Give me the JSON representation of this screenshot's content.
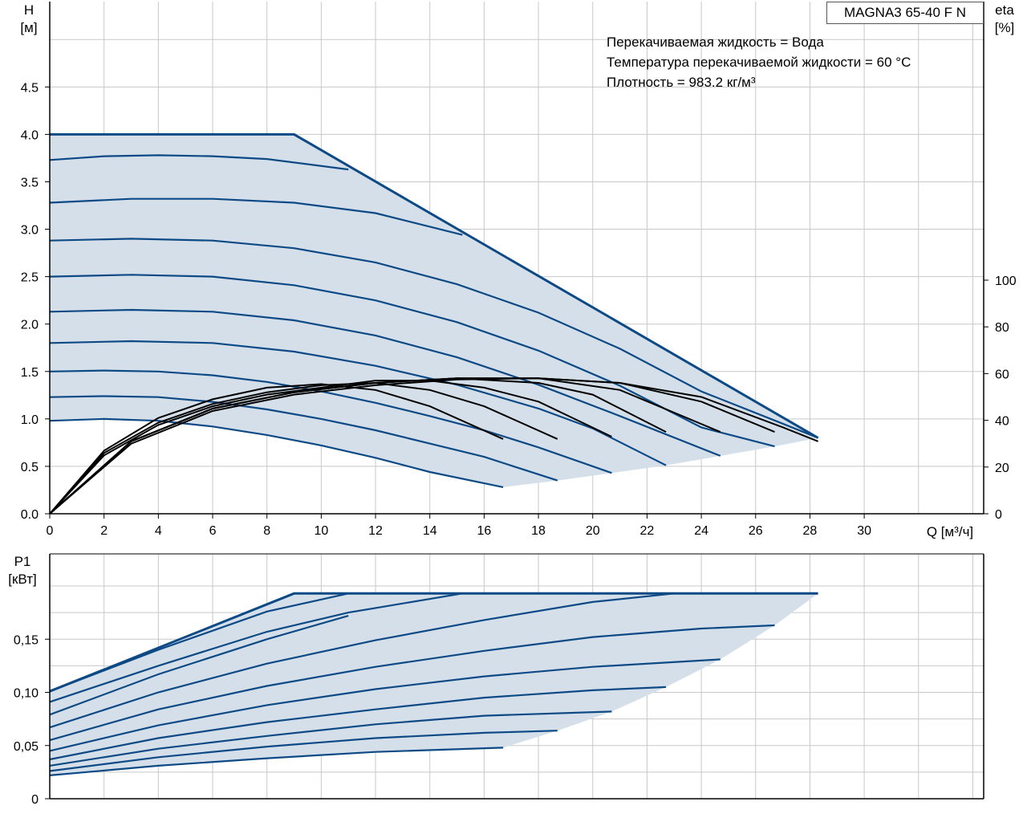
{
  "model_label": "MAGNA3 65-40 F N",
  "info_lines": [
    "Перекачиваемая жидкость = Вода",
    "Температура перекачиваемой жидкости = 60 °C",
    "Плотность = 983.2 кг/м³"
  ],
  "colors": {
    "curve": "#0d4a85",
    "fill": "#d4dfea",
    "eta": "#000000",
    "grid": "#c8c8c8"
  },
  "chart_data": [
    {
      "type": "line",
      "ylabel_lines": [
        "H",
        "[м]"
      ],
      "y2label_lines": [
        "eta",
        "[%]"
      ],
      "xlabel": "Q [м³/ч]",
      "xlim": [
        0,
        34.4
      ],
      "ylim": [
        0,
        5.4
      ],
      "y2lim": [
        0,
        100
      ],
      "x_ticks": [
        "0",
        "2",
        "4",
        "6",
        "8",
        "10",
        "12",
        "14",
        "16",
        "18",
        "20",
        "22",
        "24",
        "26",
        "28",
        "30"
      ],
      "y_ticks": [
        "0.0",
        "0.5",
        "1.0",
        "1.5",
        "2.0",
        "2.5",
        "3.0",
        "3.5",
        "4.0",
        "4.5"
      ],
      "y2_ticks": [
        "0",
        "20",
        "40",
        "60",
        "80",
        "100"
      ],
      "grid": true,
      "max_curve": {
        "x": [
          0,
          9.0,
          28.3
        ],
        "y": [
          4.0,
          4.0,
          0.8
        ]
      },
      "min_curve_end_points": {
        "x": [
          16.7,
          18.7,
          20.7,
          22.7,
          24.7,
          26.7,
          28.3
        ],
        "y": [
          0.28,
          0.35,
          0.43,
          0.51,
          0.61,
          0.71,
          0.8
        ]
      },
      "series": [
        {
          "x": [
            0,
            2,
            4,
            6,
            8,
            10,
            12,
            14,
            16.7
          ],
          "y": [
            0.98,
            1.0,
            0.98,
            0.92,
            0.83,
            0.72,
            0.59,
            0.44,
            0.28
          ]
        },
        {
          "x": [
            0,
            2,
            4,
            6,
            8,
            10,
            12,
            14,
            16,
            18.7
          ],
          "y": [
            1.23,
            1.24,
            1.23,
            1.18,
            1.1,
            1.0,
            0.88,
            0.74,
            0.6,
            0.35
          ]
        },
        {
          "x": [
            0,
            2,
            4,
            6,
            8,
            10,
            12,
            14,
            16,
            18,
            20.7
          ],
          "y": [
            1.5,
            1.51,
            1.5,
            1.46,
            1.39,
            1.29,
            1.17,
            1.03,
            0.88,
            0.7,
            0.43
          ]
        },
        {
          "x": [
            0,
            3,
            6,
            9,
            12,
            15,
            18,
            20,
            22.7
          ],
          "y": [
            1.8,
            1.82,
            1.8,
            1.71,
            1.56,
            1.36,
            1.11,
            0.9,
            0.51
          ]
        },
        {
          "x": [
            0,
            3,
            6,
            9,
            12,
            15,
            18,
            21,
            24.7
          ],
          "y": [
            2.13,
            2.15,
            2.13,
            2.04,
            1.88,
            1.65,
            1.36,
            1.03,
            0.61
          ]
        },
        {
          "x": [
            0,
            3,
            6,
            9,
            12,
            15,
            18,
            21,
            24,
            26.7
          ],
          "y": [
            2.5,
            2.52,
            2.5,
            2.41,
            2.25,
            2.02,
            1.72,
            1.35,
            0.91,
            0.71
          ]
        },
        {
          "x": [
            0,
            3,
            6,
            9,
            12,
            15,
            18,
            21,
            24,
            27,
            28.3
          ],
          "y": [
            2.88,
            2.9,
            2.88,
            2.8,
            2.65,
            2.42,
            2.12,
            1.74,
            1.29,
            0.95,
            0.8
          ]
        },
        {
          "x": [
            0,
            3,
            6,
            9,
            12,
            15.2
          ],
          "y": [
            3.28,
            3.32,
            3.32,
            3.28,
            3.17,
            2.94
          ]
        },
        {
          "x": [
            0,
            2,
            4,
            6,
            8,
            11.0
          ],
          "y": [
            3.73,
            3.77,
            3.78,
            3.77,
            3.74,
            3.63
          ]
        }
      ],
      "eta_series": [
        {
          "x": [
            0,
            2,
            4,
            6,
            8,
            10,
            12,
            14,
            16.7
          ],
          "y": [
            0,
            27,
            41,
            49,
            54,
            55.5,
            53,
            46,
            32
          ]
        },
        {
          "x": [
            0,
            2,
            4,
            6,
            8,
            10,
            12,
            14,
            16,
            18.7
          ],
          "y": [
            0,
            26,
            39,
            47,
            52,
            55,
            56,
            53,
            46,
            32
          ]
        },
        {
          "x": [
            0,
            2,
            4,
            6,
            8,
            10,
            12,
            14,
            16,
            18,
            20.7
          ],
          "y": [
            0,
            25,
            38,
            46,
            51,
            54,
            57,
            57,
            54,
            48,
            33
          ]
        },
        {
          "x": [
            0,
            3,
            6,
            9,
            12,
            15,
            18,
            20,
            22.7
          ],
          "y": [
            0,
            31,
            45,
            52,
            56,
            58,
            56,
            51,
            35
          ]
        },
        {
          "x": [
            0,
            3,
            6,
            9,
            12,
            15,
            18,
            21,
            24.7
          ],
          "y": [
            0,
            31,
            45,
            52,
            56,
            58,
            58,
            53,
            35
          ]
        },
        {
          "x": [
            0,
            3,
            6,
            9,
            12,
            15,
            18,
            21,
            24,
            26.7
          ],
          "y": [
            0,
            31,
            45,
            52,
            56,
            58,
            58,
            56,
            48,
            35
          ]
        },
        {
          "x": [
            0,
            3,
            6,
            9,
            12,
            15,
            18,
            21,
            24,
            27,
            28.3
          ],
          "y": [
            0,
            30,
            44,
            51,
            55,
            57.5,
            58,
            56,
            50,
            37,
            31
          ]
        }
      ]
    },
    {
      "type": "line",
      "ylabel_lines": [
        "P1",
        "[кВт]"
      ],
      "xlim": [
        0,
        34.4
      ],
      "ylim": [
        0,
        0.2
      ],
      "y_ticks": [
        "0",
        "0,05",
        "0,10",
        "0,15"
      ],
      "grid": true,
      "max_curve": {
        "x": [
          0,
          9.0,
          28.3
        ],
        "y": [
          0.101,
          0.193,
          0.193
        ]
      },
      "series": [
        {
          "x": [
            0,
            4,
            8,
            12,
            16.7
          ],
          "y": [
            0.022,
            0.031,
            0.038,
            0.044,
            0.048
          ]
        },
        {
          "x": [
            0,
            4,
            8,
            12,
            16,
            18.7
          ],
          "y": [
            0.026,
            0.039,
            0.049,
            0.057,
            0.062,
            0.064
          ]
        },
        {
          "x": [
            0,
            4,
            8,
            12,
            16,
            20.7
          ],
          "y": [
            0.031,
            0.047,
            0.059,
            0.07,
            0.078,
            0.082
          ]
        },
        {
          "x": [
            0,
            4,
            8,
            12,
            16,
            20,
            22.7
          ],
          "y": [
            0.037,
            0.057,
            0.072,
            0.084,
            0.095,
            0.102,
            0.105
          ]
        },
        {
          "x": [
            0,
            4,
            8,
            12,
            16,
            20,
            24.7
          ],
          "y": [
            0.045,
            0.069,
            0.088,
            0.103,
            0.115,
            0.124,
            0.131
          ]
        },
        {
          "x": [
            0,
            4,
            8,
            12,
            16,
            20,
            24,
            26.7
          ],
          "y": [
            0.055,
            0.084,
            0.106,
            0.124,
            0.139,
            0.152,
            0.16,
            0.163
          ]
        },
        {
          "x": [
            0,
            4,
            8,
            12,
            16,
            20,
            23.0
          ],
          "y": [
            0.067,
            0.1,
            0.127,
            0.149,
            0.168,
            0.185,
            0.193
          ]
        },
        {
          "x": [
            0,
            4,
            8,
            11.0
          ],
          "y": [
            0.079,
            0.117,
            0.15,
            0.172
          ]
        },
        {
          "x": [
            0,
            4,
            8,
            11,
            15.2
          ],
          "y": [
            0.091,
            0.125,
            0.157,
            0.175,
            0.193
          ]
        },
        {
          "x": [
            0,
            4,
            8,
            11.0
          ],
          "y": [
            0.101,
            0.14,
            0.176,
            0.193
          ]
        }
      ]
    }
  ]
}
